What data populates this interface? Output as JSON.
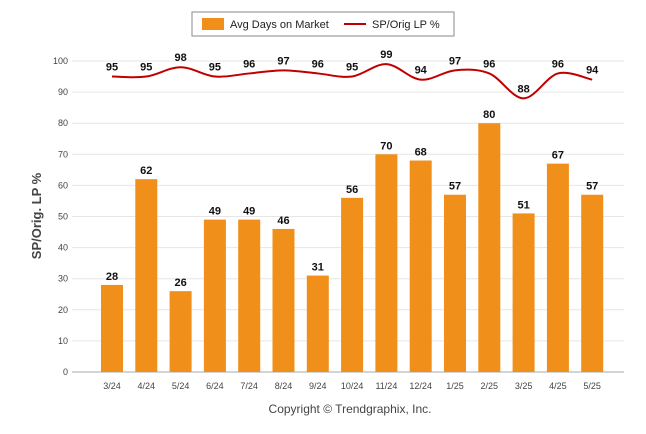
{
  "chart_data": {
    "type": "bar",
    "categories": [
      "3/24",
      "4/24",
      "5/24",
      "6/24",
      "7/24",
      "8/24",
      "9/24",
      "10/24",
      "11/24",
      "12/24",
      "1/25",
      "2/25",
      "3/25",
      "4/25",
      "5/25"
    ],
    "series": [
      {
        "name": "Avg Days on Market",
        "type": "bar",
        "color": "#f0901a",
        "values": [
          28,
          62,
          26,
          49,
          49,
          46,
          31,
          56,
          70,
          68,
          57,
          80,
          51,
          67,
          57
        ]
      },
      {
        "name": "SP/Orig LP %",
        "type": "line",
        "color": "#c00000",
        "values": [
          95,
          95,
          98,
          95,
          96,
          97,
          96,
          95,
          99,
          94,
          97,
          96,
          88,
          96,
          94
        ]
      }
    ],
    "ylabel": "SP/Orig. LP %",
    "ylim": [
      0,
      100
    ],
    "yticks": [
      0,
      10,
      20,
      30,
      40,
      50,
      60,
      70,
      80,
      90,
      100
    ],
    "grid": true,
    "legend_position": "top-center",
    "footer": "Copyright © Trendgraphix, Inc."
  }
}
